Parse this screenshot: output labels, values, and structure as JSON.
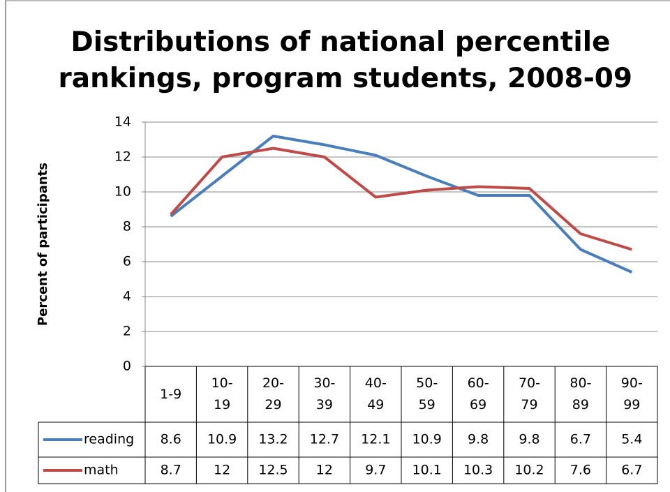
{
  "chart_data": {
    "type": "line",
    "title": "Distributions of national percentile rankings, program students, 2008-09",
    "y_label": "Percent of participants",
    "categories": [
      "1-9",
      "10-19",
      "20-29",
      "30-39",
      "40-49",
      "50-59",
      "60-69",
      "70-79",
      "80-89",
      "90-99"
    ],
    "series": [
      {
        "name": "reading",
        "color": "#4a7ebb",
        "values": [
          8.6,
          10.9,
          13.2,
          12.7,
          12.1,
          10.9,
          9.8,
          9.8,
          6.7,
          5.4
        ]
      },
      {
        "name": "math",
        "color": "#be4b48",
        "values": [
          8.7,
          12,
          12.5,
          12,
          9.7,
          10.1,
          10.3,
          10.2,
          7.6,
          6.7
        ]
      }
    ],
    "ylim": [
      0,
      14
    ],
    "yticks": [
      0,
      2,
      4,
      6,
      8,
      10,
      12,
      14
    ],
    "grid": true,
    "data_table": true
  }
}
